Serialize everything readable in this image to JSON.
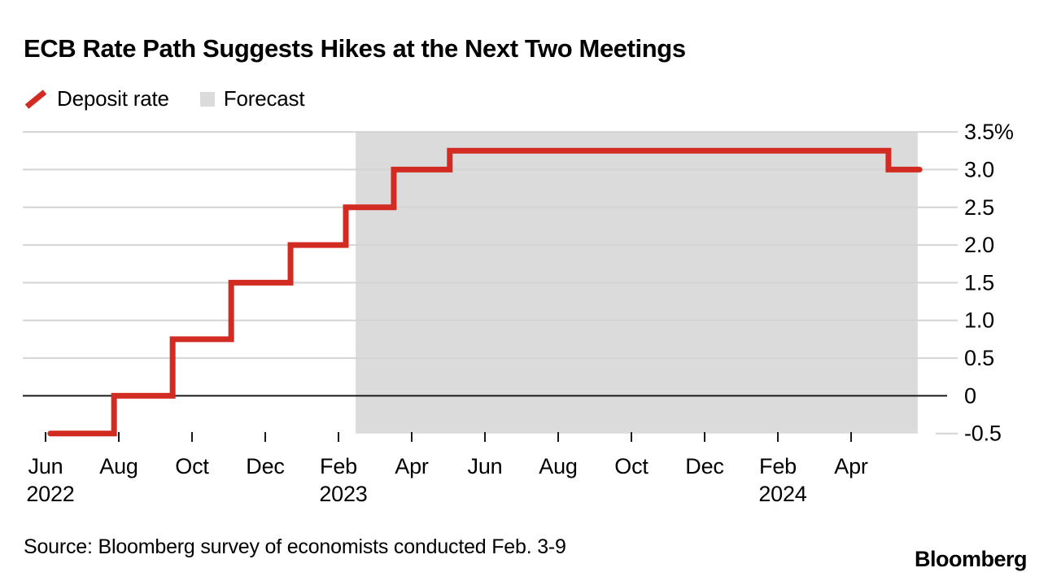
{
  "header": {
    "title": "ECB Rate Path Suggests Hikes at the Next Two Meetings"
  },
  "legend": {
    "items": [
      {
        "label": "Deposit rate",
        "swatch": "line",
        "color": "#d22b21"
      },
      {
        "label": "Forecast",
        "swatch": "box",
        "color": "#dbdbdb"
      }
    ]
  },
  "footer": {
    "source": "Source: Bloomberg survey of economists conducted Feb. 3-9",
    "brand": "Bloomberg"
  },
  "colors": {
    "line_red": "#d22b21",
    "forecast_gray": "#dbdbdb",
    "gridline": "#d4d4d4",
    "axis_black": "#1a1a1a",
    "text": "#000000",
    "background": "#ffffff"
  },
  "chart_data": {
    "type": "line",
    "subtype": "step-after",
    "title": "ECB Rate Path Suggests Hikes at the Next Two Meetings",
    "unit": "%",
    "ylim": [
      -0.5,
      3.5
    ],
    "y_ticks": [
      3.5,
      3.0,
      2.5,
      2.0,
      1.5,
      1.0,
      0.5,
      0,
      -0.5
    ],
    "y_tick_labels": [
      "3.5%",
      "3.0",
      "2.5",
      "2.0",
      "1.5",
      "1.0",
      "0.5",
      "0",
      "-0.5"
    ],
    "x_domain": [
      "Jun 2022",
      "Jun 2024"
    ],
    "x_ticks": [
      {
        "month": 0,
        "label": "Jun",
        "year": "2022"
      },
      {
        "month": 2,
        "label": "Aug"
      },
      {
        "month": 4,
        "label": "Oct"
      },
      {
        "month": 6,
        "label": "Dec"
      },
      {
        "month": 8,
        "label": "Feb",
        "year": "2023"
      },
      {
        "month": 10,
        "label": "Apr"
      },
      {
        "month": 12,
        "label": "Jun"
      },
      {
        "month": 14,
        "label": "Aug"
      },
      {
        "month": 16,
        "label": "Oct"
      },
      {
        "month": 18,
        "label": "Dec"
      },
      {
        "month": 20,
        "label": "Feb",
        "year": "2024"
      },
      {
        "month": 22,
        "label": "Apr"
      }
    ],
    "forecast_region": {
      "label": "Forecast",
      "from_month": 8.47,
      "to_month": 23.82,
      "color": "#dbdbdb"
    },
    "series": [
      {
        "name": "Deposit rate",
        "color": "#d22b21",
        "points": [
          [
            0.13,
            -0.5
          ],
          [
            1.87,
            0
          ],
          [
            3.47,
            0.75
          ],
          [
            5.07,
            1.5
          ],
          [
            6.69,
            2.0
          ],
          [
            8.2,
            2.5
          ],
          [
            9.51,
            3.0
          ],
          [
            11.04,
            3.25
          ],
          [
            23.02,
            3.0
          ],
          [
            23.87,
            3.0
          ]
        ]
      }
    ],
    "values_by_date": [
      {
        "date": "Jun 2022",
        "value": -0.5
      },
      {
        "date": "Jul 2022",
        "value": 0
      },
      {
        "date": "Sep 2022",
        "value": 0.75
      },
      {
        "date": "Nov 2022",
        "value": 1.5
      },
      {
        "date": "Dec 2022",
        "value": 2.0
      },
      {
        "date": "Feb 2023",
        "value": 2.5
      },
      {
        "date": "Mar 2023 (forecast)",
        "value": 3.0
      },
      {
        "date": "May 2023 (forecast)",
        "value": 3.25
      },
      {
        "date": "May 2024 (forecast)",
        "value": 3.0
      }
    ],
    "legend_position": "top-left",
    "grid": true
  }
}
